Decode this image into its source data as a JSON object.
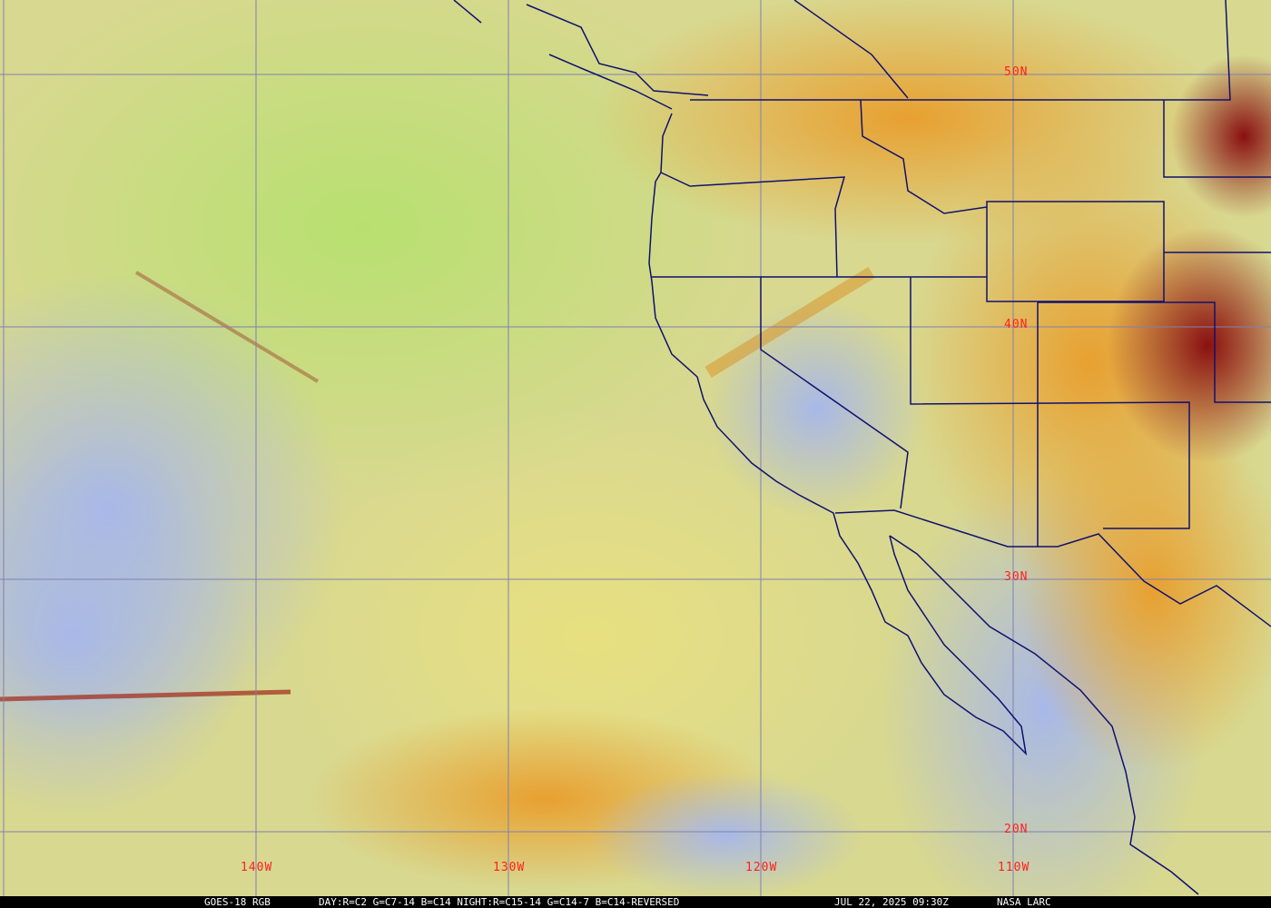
{
  "map": {
    "satellite": "GOES-18 RGB",
    "product": "DAY:R=C2 G=C7-14 B=C14 NIGHT:R=C15-14 G=C14-7 B=C14-REVERSED",
    "timestamp": "JUL 22, 2025 09:30Z",
    "credit": "NASA LARC",
    "latitude_labels": [
      "50N",
      "40N",
      "30N",
      "20N"
    ],
    "longitude_labels": [
      "140W",
      "130W",
      "120W",
      "110W"
    ],
    "colors": {
      "gridlines": "#8080b0",
      "borders": "#101070",
      "grid_labels": "#ff2020",
      "caption_bg": "#000000",
      "caption_text": "#ffffff"
    }
  }
}
